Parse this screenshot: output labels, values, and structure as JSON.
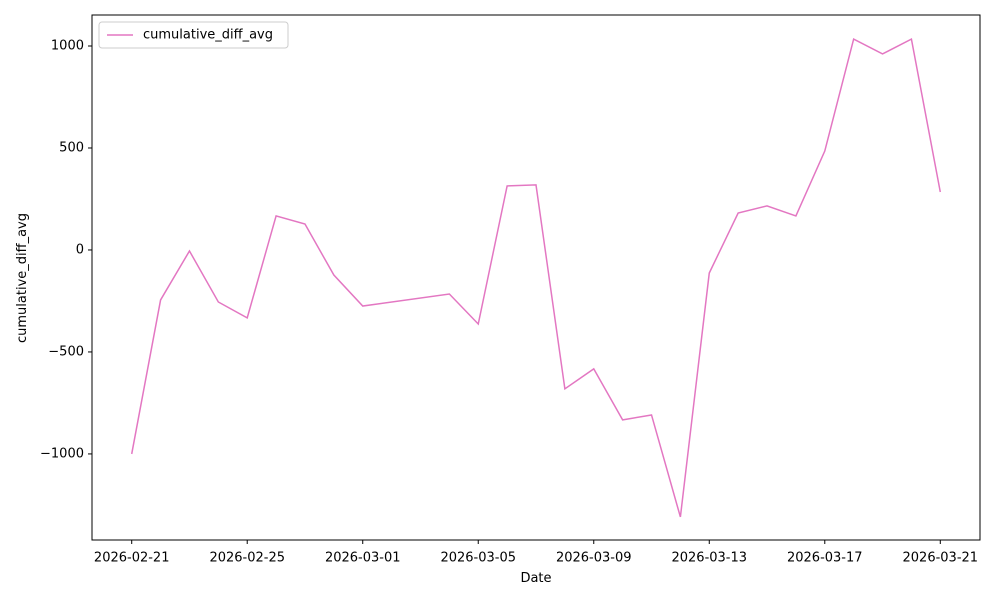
{
  "chart_data": {
    "type": "line",
    "x_label": "Date",
    "y_label": "cumulative_diff_avg",
    "x": [
      "2026-02-21",
      "2026-02-22",
      "2026-02-23",
      "2026-02-24",
      "2026-02-25",
      "2026-02-26",
      "2026-02-27",
      "2026-02-28",
      "2026-03-01",
      "2026-03-04",
      "2026-03-05",
      "2026-03-06",
      "2026-03-07",
      "2026-03-08",
      "2026-03-09",
      "2026-03-10",
      "2026-03-11",
      "2026-03-12",
      "2026-03-13",
      "2026-03-14",
      "2026-03-15",
      "2026-03-16",
      "2026-03-17",
      "2026-03-18",
      "2026-03-19",
      "2026-03-20",
      "2026-03-21"
    ],
    "series": [
      {
        "name": "cumulative_diff_avg",
        "color": "#e377c2",
        "values": [
          -1000,
          -245,
          -5,
          -255,
          -333,
          167,
          127,
          -123,
          -275,
          -216,
          -363,
          314,
          319,
          -681,
          -583,
          -833,
          -809,
          -1309,
          -113,
          181,
          216,
          167,
          485,
          1034,
          961,
          1034,
          284
        ]
      }
    ],
    "xlim": [
      "2026-02-19T15:00",
      "2026-03-22T09:00"
    ],
    "xticks": [
      "2026-02-21",
      "2026-02-25",
      "2026-03-01",
      "2026-03-05",
      "2026-03-09",
      "2026-03-13",
      "2026-03-17",
      "2026-03-21"
    ],
    "ylim": [
      -1422,
      1152
    ],
    "yticks": [
      {
        "value": -1000,
        "label": "−1000"
      },
      {
        "value": -500,
        "label": "−500"
      },
      0,
      500,
      1000
    ],
    "legend": "upper left",
    "grid": false
  }
}
